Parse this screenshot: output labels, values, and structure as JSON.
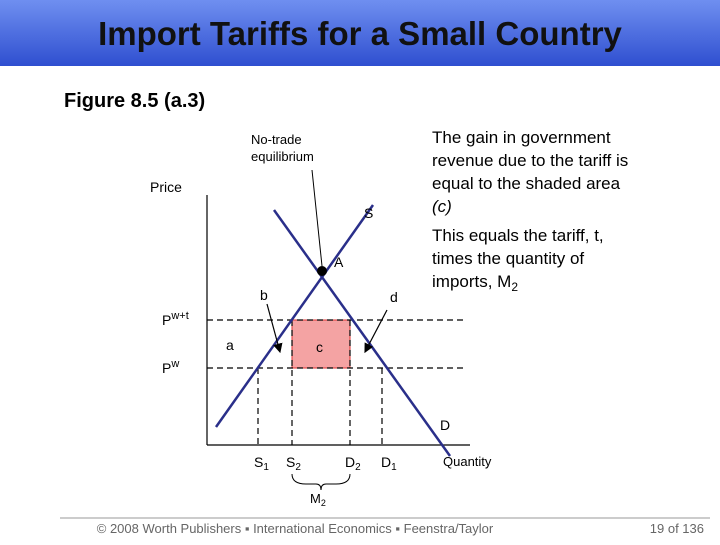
{
  "header": {
    "title": "Import Tariffs for a Small Country"
  },
  "figure_label": "Figure 8.5 (a.3)",
  "diagram": {
    "y_axis_label": "Price",
    "x_axis_label": "Quantity",
    "supply_label": "S",
    "demand_label": "D",
    "point_label": "A",
    "no_trade_label": [
      "No-trade",
      "equilibrium"
    ],
    "area_labels": {
      "a": "a",
      "b": "b",
      "c": "c",
      "d": "d"
    },
    "price_labels": [
      {
        "base": "P",
        "sup": "w+t"
      },
      {
        "base": "P",
        "sup": "w"
      }
    ],
    "quantity_labels": [
      {
        "base": "S",
        "sub": "1"
      },
      {
        "base": "S",
        "sub": "2"
      },
      {
        "base": "D",
        "sub": "2"
      },
      {
        "base": "D",
        "sub": "1"
      }
    ],
    "imports_label": {
      "base": "M",
      "sub": "2"
    }
  },
  "notes": [
    {
      "lines": [
        "The gain in government",
        "revenue due to the tariff is",
        "equal to the shaded area"
      ],
      "emphasis": "(c)"
    },
    {
      "lines": [
        "This equals the tariff, t,",
        "times the quantity of"
      ],
      "last": {
        "text": "imports, M",
        "sub": "2"
      }
    }
  ],
  "footer": {
    "credit": "© 2008 Worth Publishers ▪ International Economics ▪ Feenstra/Taylor",
    "page": "19 of 136"
  }
}
